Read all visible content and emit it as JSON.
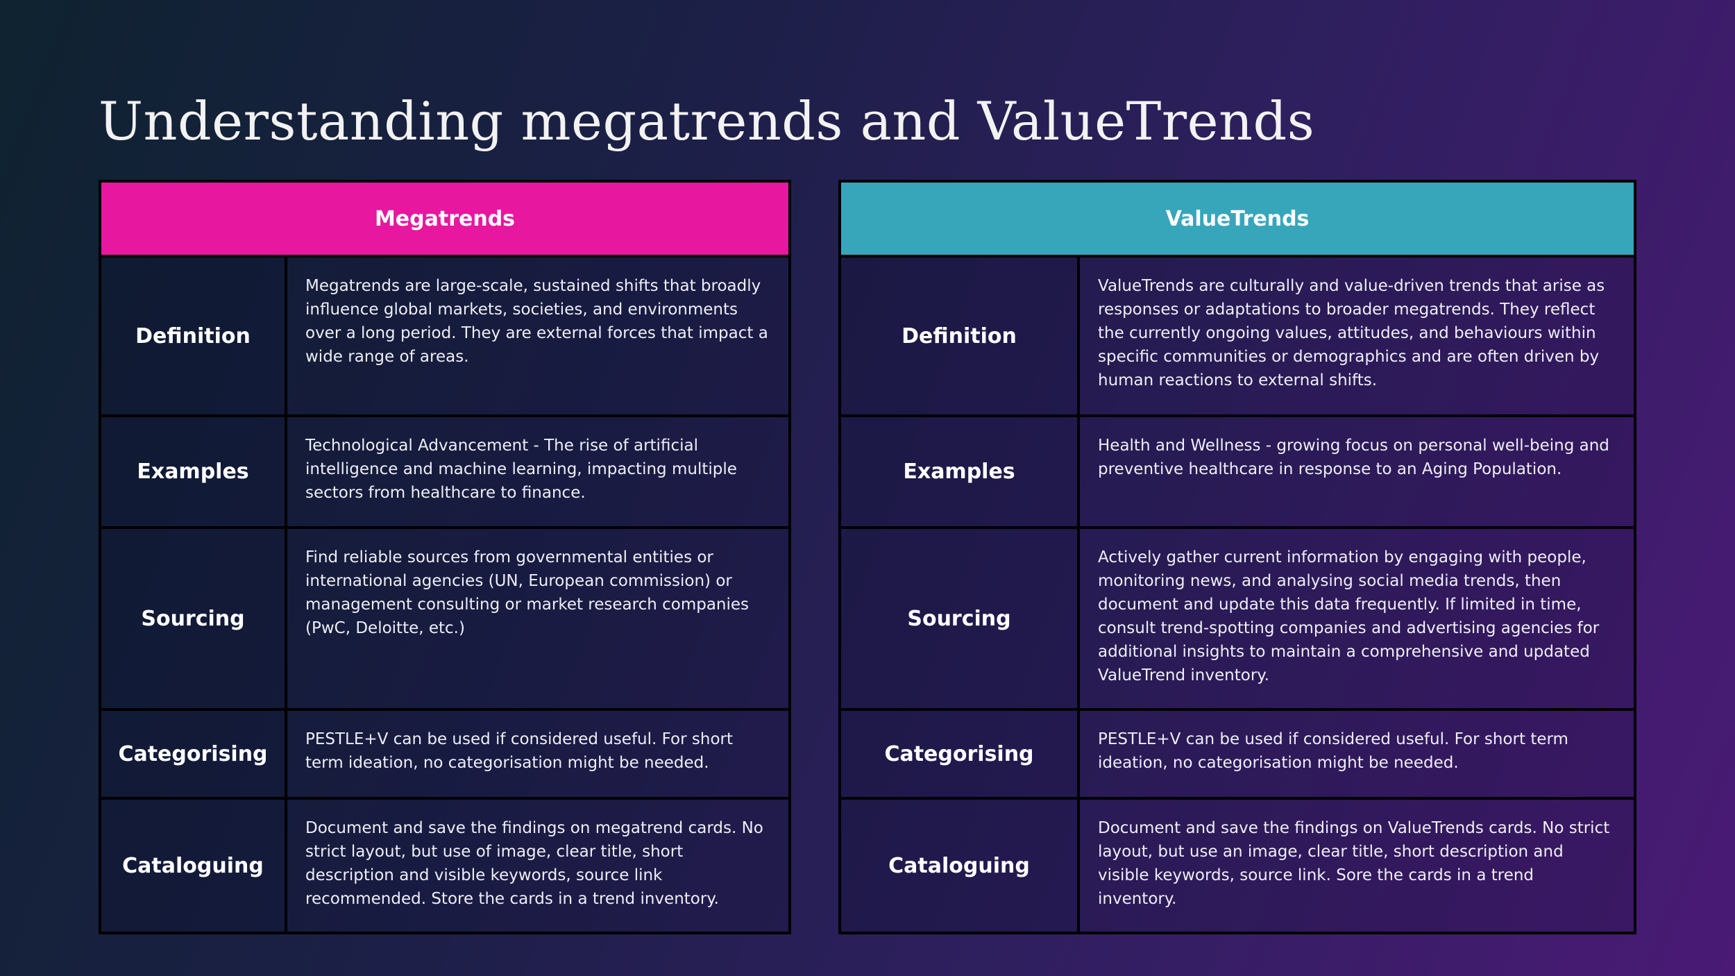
{
  "title": "Understanding megatrends and ValueTrends",
  "colors": {
    "megatrends_header": "#e8179f",
    "valuetrends_header": "#38a6ba",
    "border": "#000000"
  },
  "megatrends": {
    "header": "Megatrends",
    "rows": [
      {
        "label": "Definition",
        "text": "Megatrends are large-scale, sustained shifts that broadly influence global markets, societies, and environments over a long period. They are external forces that impact a wide range of areas."
      },
      {
        "label": "Examples",
        "text": "Technological Advancement - The rise of artificial intelligence and machine learning, impacting multiple sectors from healthcare to finance."
      },
      {
        "label": "Sourcing",
        "text": "Find reliable sources from governmental entities or international agencies (UN, European commission) or management consulting or market research companies (PwC, Deloitte, etc.)"
      },
      {
        "label": "Categorising",
        "text": "PESTLE+V can be used if considered useful. For short term ideation, no categorisation might be needed."
      },
      {
        "label": "Cataloguing",
        "text": "Document and save the findings on megatrend cards. No strict layout, but use of image, clear title, short description and visible keywords, source link recommended. Store the cards in a trend inventory."
      }
    ]
  },
  "valuetrends": {
    "header": "ValueTrends",
    "rows": [
      {
        "label": "Definition",
        "text": "ValueTrends are culturally and value-driven trends that arise as responses or adaptations to broader megatrends. They reflect the currently ongoing values, attitudes, and behaviours within specific communities or demographics and are often driven by human reactions to external shifts."
      },
      {
        "label": "Examples",
        "text": "Health and Wellness - growing focus on personal well-being and preventive healthcare in response to an Aging Population."
      },
      {
        "label": "Sourcing",
        "text": "Actively gather current information by engaging with people, monitoring news, and analysing social media trends, then document and update this data frequently. If limited in time, consult trend-spotting companies and advertising agencies for additional insights to maintain a comprehensive and updated ValueTrend inventory."
      },
      {
        "label": "Categorising",
        "text": "PESTLE+V can be used if considered useful. For short term ideation, no categorisation might be needed."
      },
      {
        "label": "Cataloguing",
        "text": "Document and save the findings on ValueTrends cards. No strict layout, but use an image, clear title, short description and visible keywords, source link. Sore the cards in a trend inventory."
      }
    ]
  }
}
